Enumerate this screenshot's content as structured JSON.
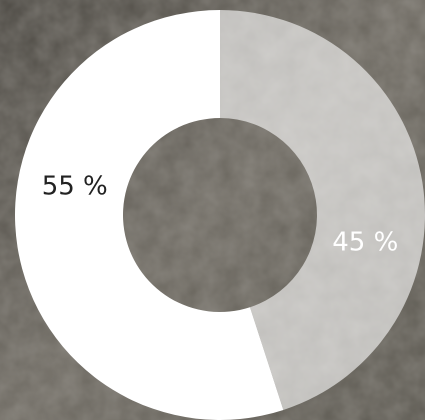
{
  "chart_data": {
    "type": "donut",
    "values": [
      45,
      55
    ],
    "value_labels": [
      "45 %",
      "55 %"
    ],
    "colors": [
      "rgba(255,255,255,0.6)",
      "#ffffff"
    ]
  }
}
